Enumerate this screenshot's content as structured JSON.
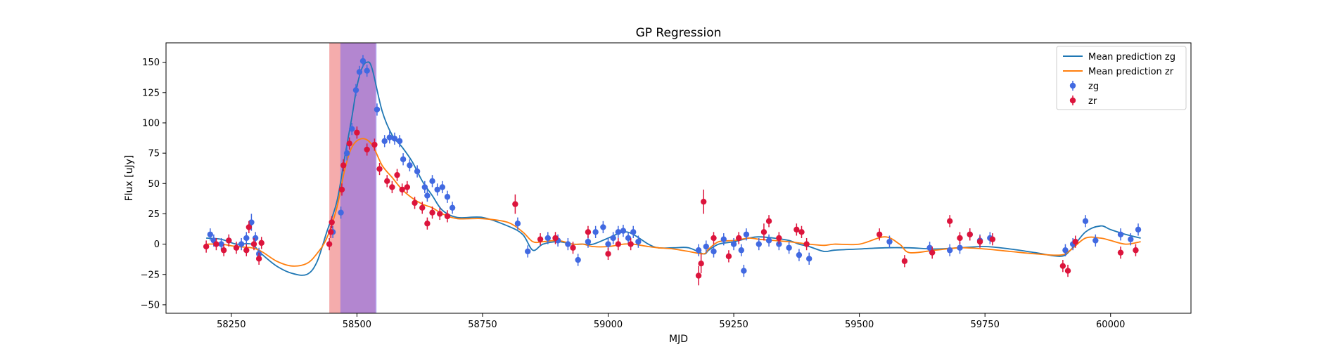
{
  "chart_data": {
    "type": "scatter",
    "title": "GP Regression",
    "xlabel": "MJD",
    "ylabel": "Flux [uJy]",
    "xlim": [
      58120,
      60160
    ],
    "ylim": [
      -57,
      166
    ],
    "xticks": [
      58250,
      58500,
      58750,
      59000,
      59250,
      59500,
      59750,
      60000
    ],
    "yticks": [
      -50,
      -25,
      0,
      25,
      50,
      75,
      100,
      125,
      150
    ],
    "grid": false,
    "legend_position": "top-right",
    "colors": {
      "zg_line": "#1f77b4",
      "zr_line": "#ff7f0e",
      "zg_points": "#4169e1",
      "zr_points": "#dc143c",
      "red_band": "#f08080",
      "blue_band": "#7b68ee"
    },
    "shaded_regions": [
      {
        "name": "zr-window",
        "x0": 58445,
        "x1": 58537,
        "color": "#f08080",
        "opacity": 0.65
      },
      {
        "name": "zg-window",
        "x0": 58467,
        "x1": 58539,
        "color": "#7b68ee",
        "opacity": 0.55
      }
    ],
    "legend": [
      {
        "label": "Mean prediction zg",
        "kind": "line",
        "color": "#1f77b4"
      },
      {
        "label": "Mean prediction zr",
        "kind": "line",
        "color": "#ff7f0e"
      },
      {
        "label": "zg",
        "kind": "errorbar",
        "color": "#4169e1"
      },
      {
        "label": "zr",
        "kind": "errorbar",
        "color": "#dc143c"
      }
    ],
    "lines": [
      {
        "name": "Mean prediction zg",
        "color": "#1f77b4",
        "x": [
          58200,
          58230,
          58260,
          58290,
          58310,
          58340,
          58370,
          58400,
          58420,
          58440,
          58460,
          58475,
          58490,
          58500,
          58510,
          58520,
          58530,
          58550,
          58570,
          58590,
          58610,
          58630,
          58650,
          58670,
          58700,
          58750,
          58800,
          58830,
          58850,
          58870,
          58900,
          58930,
          58950,
          58970,
          59000,
          59030,
          59050,
          59080,
          59100,
          59130,
          59160,
          59190,
          59200,
          59220,
          59250,
          59280,
          59300,
          59330,
          59360,
          59380,
          59400,
          59430,
          59450,
          59500,
          59550,
          59600,
          59650,
          59700,
          59750,
          59800,
          59850,
          59900,
          59920,
          59950,
          59980,
          60000,
          60030,
          60060
        ],
        "y": [
          5,
          4,
          0,
          0,
          -8,
          -18,
          -24,
          -25,
          -15,
          10,
          35,
          70,
          105,
          130,
          145,
          150,
          145,
          110,
          90,
          80,
          68,
          52,
          40,
          28,
          22,
          22,
          15,
          8,
          -5,
          0,
          2,
          0,
          0,
          0,
          5,
          10,
          8,
          0,
          -3,
          -3,
          -3,
          -8,
          -5,
          0,
          2,
          5,
          6,
          5,
          3,
          0,
          -2,
          -6,
          -5,
          -4,
          -3,
          -3,
          -4,
          -3,
          -2,
          -4,
          -7,
          -10,
          -5,
          10,
          15,
          12,
          8,
          5
        ]
      },
      {
        "name": "Mean prediction zr",
        "color": "#ff7f0e",
        "x": [
          58200,
          58230,
          58260,
          58290,
          58310,
          58340,
          58370,
          58400,
          58420,
          58440,
          58460,
          58475,
          58490,
          58510,
          58530,
          58550,
          58570,
          58590,
          58610,
          58630,
          58650,
          58670,
          58700,
          58750,
          58800,
          58830,
          58850,
          58870,
          58900,
          58930,
          58950,
          58970,
          59000,
          59030,
          59050,
          59080,
          59100,
          59130,
          59160,
          59190,
          59200,
          59220,
          59250,
          59280,
          59300,
          59330,
          59360,
          59380,
          59400,
          59430,
          59450,
          59500,
          59550,
          59580,
          59600,
          59650,
          59700,
          59750,
          59800,
          59850,
          59900,
          59920,
          59950,
          59980,
          60000,
          60030,
          60060
        ],
        "y": [
          0,
          0,
          -2,
          -3,
          -6,
          -14,
          -18,
          -16,
          -8,
          5,
          30,
          60,
          80,
          87,
          82,
          65,
          55,
          45,
          38,
          33,
          30,
          25,
          21,
          21,
          18,
          10,
          2,
          2,
          3,
          0,
          0,
          -2,
          -2,
          0,
          0,
          -2,
          -3,
          -4,
          -6,
          -8,
          -4,
          2,
          3,
          5,
          4,
          3,
          2,
          1,
          0,
          -1,
          0,
          0,
          6,
          0,
          -7,
          -5,
          -3,
          -4,
          -6,
          -8,
          -9,
          -5,
          5,
          5,
          3,
          0,
          2
        ]
      }
    ],
    "series": [
      {
        "name": "zg",
        "color": "#4169e1",
        "x": [
          58208,
          58215,
          58230,
          58245,
          58270,
          58280,
          58290,
          58298,
          58305,
          58452,
          58468,
          58480,
          58490,
          58498,
          58505,
          58512,
          58520,
          58540,
          58555,
          58565,
          58575,
          58585,
          58592,
          58605,
          58620,
          58635,
          58640,
          58650,
          58660,
          58670,
          58680,
          58690,
          58820,
          58840,
          58880,
          58900,
          58920,
          58940,
          58960,
          58975,
          58990,
          59000,
          59010,
          59020,
          59030,
          59040,
          59050,
          59060,
          59180,
          59195,
          59210,
          59230,
          59250,
          59265,
          59270,
          59275,
          59300,
          59320,
          59340,
          59360,
          59380,
          59400,
          59560,
          59640,
          59680,
          59700,
          59720,
          59740,
          59760,
          59910,
          59925,
          59950,
          59970,
          60020,
          60040,
          60055
        ],
        "y": [
          8,
          3,
          0,
          3,
          0,
          5,
          18,
          5,
          -8,
          10,
          26,
          75,
          95,
          127,
          142,
          151,
          143,
          111,
          85,
          88,
          87,
          85,
          70,
          65,
          60,
          47,
          40,
          52,
          45,
          47,
          39,
          30,
          17,
          -6,
          5,
          3,
          0,
          -13,
          2,
          10,
          14,
          0,
          5,
          10,
          11,
          5,
          10,
          2,
          -5,
          -2,
          -6,
          4,
          0,
          -5,
          -22,
          8,
          0,
          3,
          0,
          -3,
          -9,
          -12,
          2,
          -3,
          -5,
          -3,
          8,
          3,
          5,
          -5,
          0,
          19,
          3,
          8,
          4,
          12
        ],
        "err": [
          5,
          5,
          5,
          5,
          5,
          5,
          7,
          5,
          5,
          5,
          5,
          6,
          5,
          5,
          5,
          5,
          5,
          5,
          5,
          5,
          5,
          5,
          5,
          5,
          5,
          5,
          5,
          5,
          5,
          5,
          5,
          5,
          5,
          5,
          5,
          5,
          5,
          5,
          5,
          5,
          5,
          5,
          5,
          5,
          5,
          5,
          5,
          5,
          5,
          5,
          5,
          5,
          5,
          5,
          5,
          5,
          5,
          5,
          5,
          5,
          5,
          5,
          5,
          5,
          5,
          5,
          5,
          5,
          5,
          5,
          5,
          5,
          5,
          5,
          5,
          5
        ]
      },
      {
        "name": "zr",
        "color": "#dc143c",
        "x": [
          58200,
          58220,
          58235,
          58245,
          58260,
          58280,
          58285,
          58295,
          58305,
          58310,
          58445,
          58448,
          58450,
          58470,
          58473,
          58485,
          58500,
          58520,
          58535,
          58545,
          58560,
          58570,
          58580,
          58590,
          58600,
          58615,
          58630,
          58640,
          58650,
          58665,
          58680,
          58815,
          58865,
          58895,
          58930,
          58960,
          59000,
          59020,
          59045,
          59180,
          59185,
          59190,
          59210,
          59240,
          59260,
          59310,
          59320,
          59340,
          59375,
          59385,
          59395,
          59540,
          59590,
          59645,
          59680,
          59700,
          59720,
          59740,
          59765,
          59905,
          59915,
          59930,
          60020,
          60050
        ],
        "y": [
          -2,
          0,
          -5,
          3,
          -3,
          -5,
          14,
          0,
          -12,
          1,
          0,
          10,
          18,
          45,
          65,
          83,
          92,
          78,
          82,
          62,
          52,
          47,
          57,
          45,
          47,
          34,
          30,
          17,
          26,
          25,
          23,
          33,
          4,
          5,
          -3,
          10,
          -8,
          0,
          0,
          -26,
          -16,
          35,
          5,
          -10,
          5,
          10,
          19,
          5,
          12,
          10,
          0,
          8,
          -14,
          -7,
          19,
          5,
          8,
          2,
          4,
          -18,
          -22,
          2,
          -7,
          -5
        ],
        "err": [
          5,
          5,
          5,
          5,
          5,
          5,
          5,
          5,
          5,
          5,
          5,
          5,
          5,
          5,
          5,
          5,
          5,
          5,
          5,
          5,
          5,
          5,
          5,
          5,
          5,
          5,
          5,
          5,
          5,
          5,
          5,
          8,
          5,
          5,
          5,
          5,
          5,
          5,
          5,
          8,
          8,
          10,
          5,
          5,
          5,
          7,
          5,
          5,
          5,
          5,
          5,
          5,
          5,
          5,
          5,
          5,
          5,
          5,
          5,
          5,
          5,
          5,
          5,
          5
        ]
      }
    ]
  }
}
